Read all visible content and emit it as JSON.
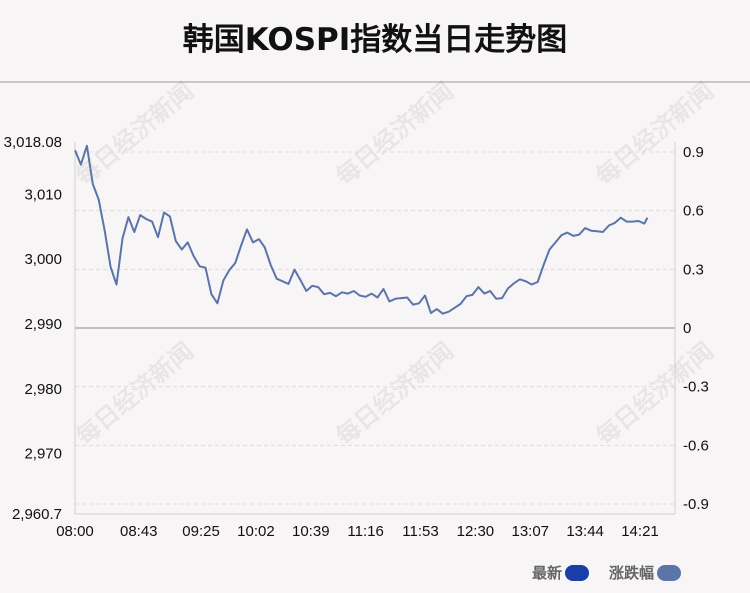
{
  "chart_data": {
    "type": "line",
    "title": "韩国KOSPI指数当日走势图",
    "x_ticks": [
      "08:00",
      "08:43",
      "09:25",
      "10:02",
      "10:39",
      "11:16",
      "11:53",
      "12:30",
      "13:07",
      "13:44",
      "14:21"
    ],
    "y_left_ticks": [
      "3,018.08",
      "3,010",
      "3,000",
      "2,990",
      "2,980",
      "2,970",
      "2,960.7"
    ],
    "y_left_range": [
      2960.7,
      3018.08
    ],
    "y_right_ticks": [
      "0.9",
      "0.6",
      "0.3",
      "0",
      "-0.3",
      "-0.6",
      "-0.9"
    ],
    "y_right_range": [
      -0.9,
      0.9
    ],
    "series": [
      {
        "name": "最新",
        "color": "#1a3ea8",
        "x": [
          "08:00",
          "08:04",
          "08:08",
          "08:12",
          "08:16",
          "08:20",
          "08:24",
          "08:28",
          "08:32",
          "08:36",
          "08:40",
          "08:44",
          "08:48",
          "08:52",
          "08:56",
          "09:00",
          "09:04",
          "09:08",
          "09:12",
          "09:16",
          "09:20",
          "09:24",
          "09:28",
          "09:32",
          "09:36",
          "09:40",
          "09:44",
          "09:48",
          "09:52",
          "09:56",
          "10:00",
          "10:04",
          "10:08",
          "10:12",
          "10:16",
          "10:20",
          "10:24",
          "10:28",
          "10:32",
          "10:36",
          "10:40",
          "10:44",
          "10:48",
          "10:52",
          "10:56",
          "11:00",
          "11:04",
          "11:08",
          "11:12",
          "11:16",
          "11:20",
          "11:24",
          "11:28",
          "11:32",
          "11:36",
          "11:40",
          "11:44",
          "11:48",
          "11:52",
          "11:56",
          "12:00",
          "12:04",
          "12:08",
          "12:12",
          "12:16",
          "12:20",
          "12:24",
          "12:28",
          "12:32",
          "12:36",
          "12:40",
          "12:44",
          "12:48",
          "12:52",
          "12:56",
          "13:00",
          "13:04",
          "13:08",
          "13:12",
          "13:16",
          "13:20",
          "13:24",
          "13:28",
          "13:32",
          "13:36",
          "13:40",
          "13:44",
          "13:48",
          "13:52",
          "13:56",
          "14:00",
          "14:04",
          "14:08",
          "14:12",
          "14:16",
          "14:20",
          "14:24",
          "14:26"
        ],
        "values": [
          3016.8,
          3014.6,
          3017.5,
          3011.6,
          3009.2,
          3004.4,
          2998.8,
          2996.1,
          3003.2,
          3006.5,
          3004.2,
          3006.8,
          3006.2,
          3005.8,
          3003.4,
          3007.2,
          3006.6,
          3002.8,
          3001.5,
          3002.6,
          3000.5,
          2998.9,
          2998.7,
          2994.6,
          2993.2,
          2996.7,
          2998.3,
          2999.4,
          3002.1,
          3004.6,
          3002.6,
          3003.1,
          3001.8,
          2999.1,
          2997.0,
          2996.6,
          2996.2,
          2998.4,
          2996.8,
          2995.1,
          2995.9,
          2995.7,
          2994.6,
          2994.8,
          2994.3,
          2994.9,
          2994.7,
          2995.1,
          2994.4,
          2994.2,
          2994.7,
          2994.1,
          2995.4,
          2993.5,
          2993.9,
          2994.0,
          2994.1,
          2993.0,
          2993.2,
          2994.4,
          2991.7,
          2992.3,
          2991.6,
          2991.9,
          2992.5,
          2993.1,
          2994.3,
          2994.5,
          2995.7,
          2994.7,
          2995.1,
          2993.9,
          2994.0,
          2995.5,
          2996.3,
          2996.9,
          2996.6,
          2996.1,
          2996.5,
          2999.1,
          3001.5,
          3002.6,
          3003.7,
          3004.1,
          3003.6,
          3003.8,
          3004.8,
          3004.4,
          3004.3,
          3004.2,
          3005.2,
          3005.6,
          3006.4,
          3005.8,
          3005.8,
          3005.9,
          3005.5,
          3006.4
        ]
      },
      {
        "name": "涨跌幅",
        "color": "#5b75a8"
      }
    ],
    "grid": true,
    "watermark": "每日经济新闻"
  }
}
